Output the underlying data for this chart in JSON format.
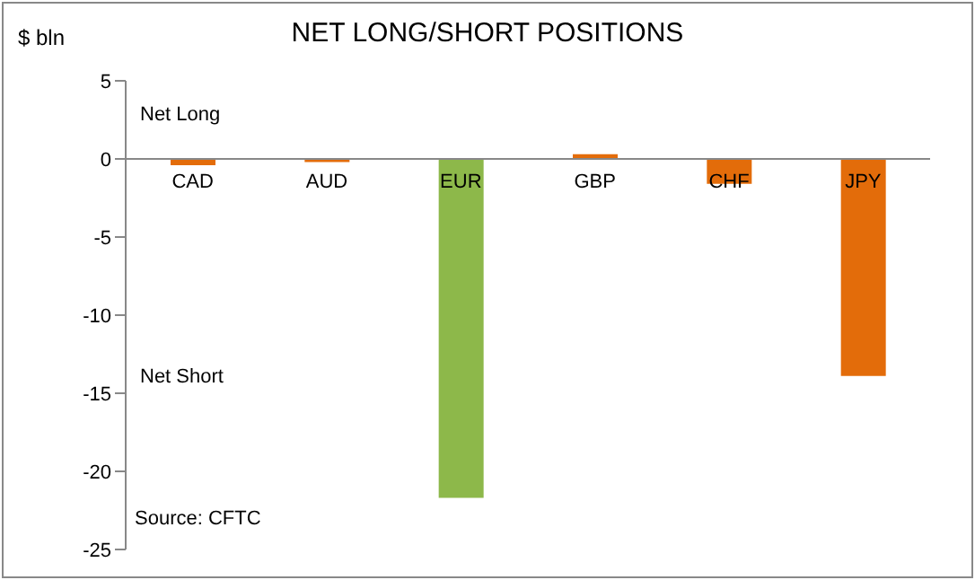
{
  "chart_data": {
    "type": "bar",
    "title": "NET LONG/SHORT POSITIONS",
    "ylabel": "$ bln",
    "categories": [
      "CAD",
      "AUD",
      "EUR",
      "GBP",
      "CHF",
      "JPY"
    ],
    "values": [
      -0.4,
      -0.2,
      -21.7,
      0.3,
      -1.6,
      -13.9
    ],
    "colors": [
      "#e36c0a",
      "#e36c0a",
      "#8db84a",
      "#e36c0a",
      "#e36c0a",
      "#e36c0a"
    ],
    "ylim": [
      -25,
      5
    ],
    "yticks": [
      -25,
      -20,
      -15,
      -10,
      -5,
      0,
      5
    ],
    "annotations": [
      "Net Long",
      "Net Short",
      "Source: CFTC"
    ]
  }
}
